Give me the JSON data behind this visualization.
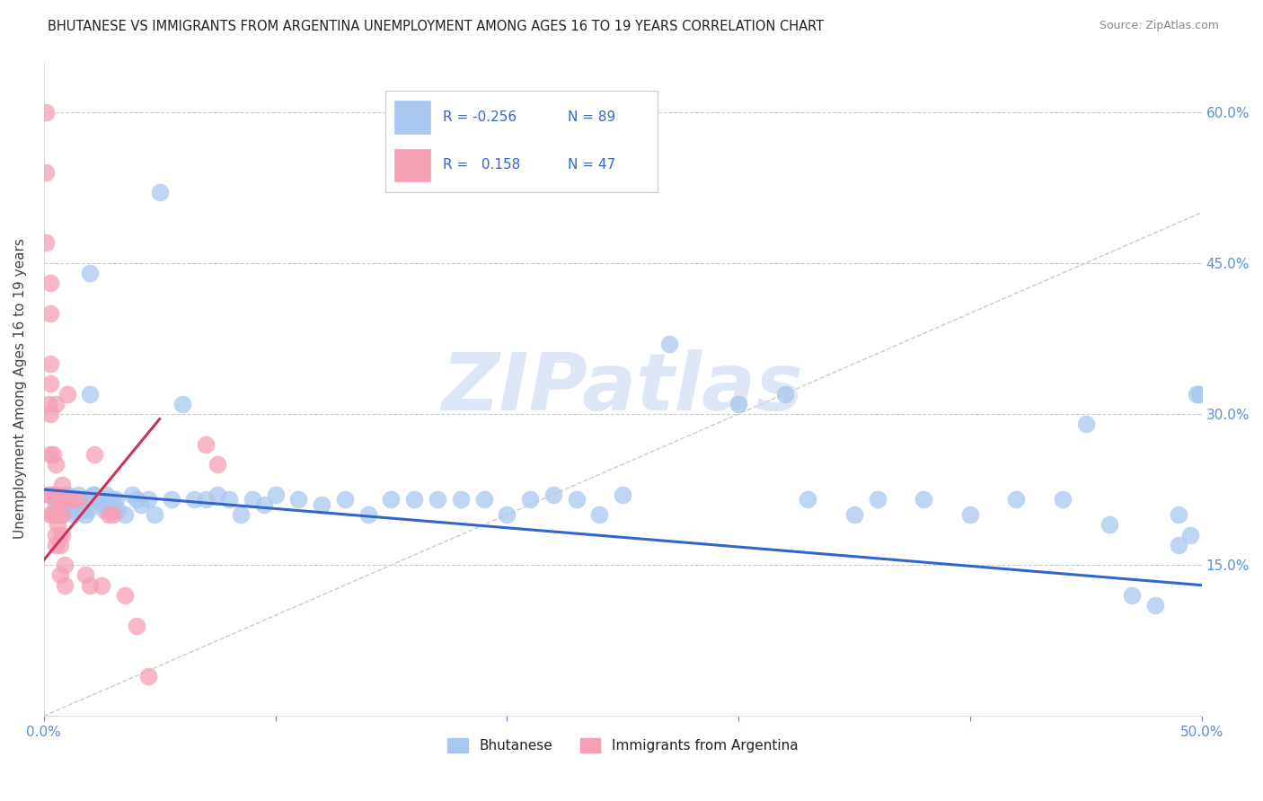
{
  "title": "BHUTANESE VS IMMIGRANTS FROM ARGENTINA UNEMPLOYMENT AMONG AGES 16 TO 19 YEARS CORRELATION CHART",
  "source": "Source: ZipAtlas.com",
  "ylabel": "Unemployment Among Ages 16 to 19 years",
  "xlim": [
    0.0,
    0.5
  ],
  "ylim": [
    0.0,
    0.65
  ],
  "xticks": [
    0.0,
    0.1,
    0.2,
    0.3,
    0.4,
    0.5
  ],
  "xtick_labels_show": [
    "0.0%",
    "",
    "",
    "",
    "",
    "50.0%"
  ],
  "yticks_right": [
    0.15,
    0.3,
    0.45,
    0.6
  ],
  "ytick_right_labels": [
    "15.0%",
    "30.0%",
    "45.0%",
    "60.0%"
  ],
  "grid_color": "#cccccc",
  "background_color": "#ffffff",
  "watermark_text": "ZIPatlas",
  "blue_color": "#a8c8f0",
  "pink_color": "#f5a0b5",
  "blue_line_color": "#3366cc",
  "pink_line_color": "#cc3355",
  "ref_line_color": "#cccccc",
  "legend_R1": "R = -0.256",
  "legend_N1": "N = 89",
  "legend_R2": "R =   0.158",
  "legend_N2": "N = 47",
  "legend_label1": "Bhutanese",
  "legend_label2": "Immigrants from Argentina",
  "blue_scatter_x": [
    0.005,
    0.005,
    0.007,
    0.007,
    0.008,
    0.009,
    0.009,
    0.01,
    0.01,
    0.01,
    0.01,
    0.012,
    0.012,
    0.013,
    0.013,
    0.014,
    0.015,
    0.015,
    0.016,
    0.016,
    0.017,
    0.018,
    0.018,
    0.019,
    0.02,
    0.02,
    0.021,
    0.022,
    0.022,
    0.023,
    0.025,
    0.025,
    0.026,
    0.027,
    0.028,
    0.03,
    0.031,
    0.032,
    0.035,
    0.038,
    0.04,
    0.042,
    0.045,
    0.048,
    0.05,
    0.055,
    0.06,
    0.065,
    0.07,
    0.075,
    0.08,
    0.085,
    0.09,
    0.095,
    0.1,
    0.11,
    0.12,
    0.13,
    0.14,
    0.15,
    0.16,
    0.17,
    0.18,
    0.19,
    0.2,
    0.21,
    0.22,
    0.23,
    0.24,
    0.25,
    0.27,
    0.3,
    0.32,
    0.33,
    0.35,
    0.36,
    0.38,
    0.4,
    0.42,
    0.44,
    0.45,
    0.46,
    0.47,
    0.48,
    0.49,
    0.49,
    0.495,
    0.498,
    0.499
  ],
  "blue_scatter_y": [
    0.21,
    0.215,
    0.2,
    0.215,
    0.215,
    0.22,
    0.215,
    0.22,
    0.215,
    0.21,
    0.205,
    0.21,
    0.205,
    0.205,
    0.2,
    0.215,
    0.22,
    0.215,
    0.21,
    0.205,
    0.215,
    0.2,
    0.215,
    0.205,
    0.44,
    0.32,
    0.22,
    0.215,
    0.22,
    0.215,
    0.215,
    0.21,
    0.205,
    0.22,
    0.21,
    0.215,
    0.215,
    0.205,
    0.2,
    0.22,
    0.215,
    0.21,
    0.215,
    0.2,
    0.52,
    0.215,
    0.31,
    0.215,
    0.215,
    0.22,
    0.215,
    0.2,
    0.215,
    0.21,
    0.22,
    0.215,
    0.21,
    0.215,
    0.2,
    0.215,
    0.215,
    0.215,
    0.215,
    0.215,
    0.2,
    0.215,
    0.22,
    0.215,
    0.2,
    0.22,
    0.37,
    0.31,
    0.32,
    0.215,
    0.2,
    0.215,
    0.215,
    0.2,
    0.215,
    0.215,
    0.29,
    0.19,
    0.12,
    0.11,
    0.2,
    0.17,
    0.18,
    0.32,
    0.32
  ],
  "pink_scatter_x": [
    0.001,
    0.001,
    0.001,
    0.002,
    0.002,
    0.003,
    0.003,
    0.003,
    0.003,
    0.003,
    0.003,
    0.003,
    0.003,
    0.004,
    0.004,
    0.004,
    0.005,
    0.005,
    0.005,
    0.005,
    0.005,
    0.005,
    0.006,
    0.006,
    0.007,
    0.007,
    0.007,
    0.008,
    0.008,
    0.008,
    0.009,
    0.009,
    0.01,
    0.01,
    0.012,
    0.015,
    0.018,
    0.02,
    0.022,
    0.025,
    0.028,
    0.03,
    0.035,
    0.04,
    0.045,
    0.07,
    0.075
  ],
  "pink_scatter_y": [
    0.6,
    0.54,
    0.47,
    0.31,
    0.22,
    0.43,
    0.4,
    0.35,
    0.33,
    0.3,
    0.26,
    0.22,
    0.2,
    0.26,
    0.22,
    0.2,
    0.31,
    0.25,
    0.22,
    0.2,
    0.18,
    0.17,
    0.215,
    0.19,
    0.215,
    0.17,
    0.14,
    0.23,
    0.2,
    0.18,
    0.15,
    0.13,
    0.32,
    0.215,
    0.215,
    0.215,
    0.14,
    0.13,
    0.26,
    0.13,
    0.2,
    0.2,
    0.12,
    0.09,
    0.04,
    0.27,
    0.25
  ],
  "blue_line_x": [
    0.0,
    0.5
  ],
  "blue_line_y": [
    0.225,
    0.13
  ],
  "pink_line_x": [
    0.0,
    0.05
  ],
  "pink_line_y": [
    0.155,
    0.295
  ],
  "ref_line_x": [
    0.0,
    0.65
  ],
  "ref_line_y": [
    0.0,
    0.65
  ]
}
